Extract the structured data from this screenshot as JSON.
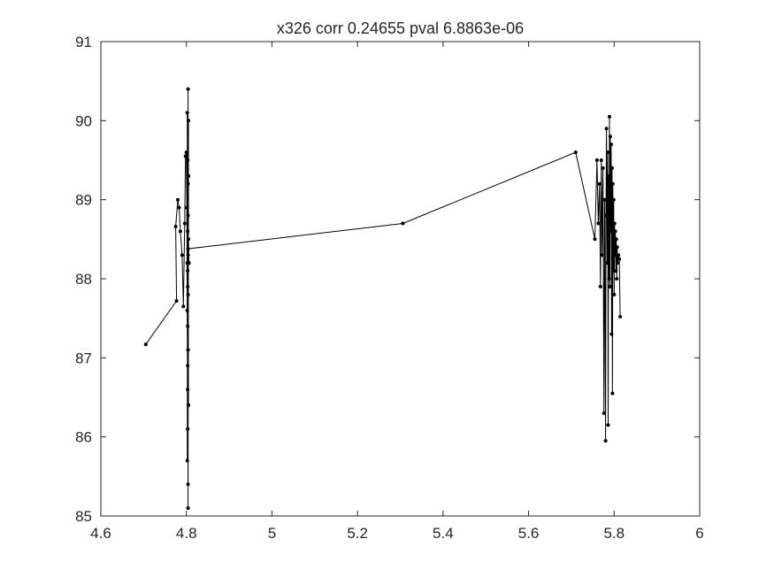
{
  "chart_data": {
    "type": "line",
    "title": "x326 corr 0.24655 pval 6.8863e-06",
    "xlabel": "",
    "ylabel": "",
    "xlim": [
      4.6,
      6
    ],
    "ylim": [
      85,
      91
    ],
    "xticks": [
      4.6,
      4.8,
      5,
      5.2,
      5.4,
      5.6,
      5.8,
      6
    ],
    "xtick_labels": [
      "4.6",
      "4.8",
      "5",
      "5.2",
      "5.4",
      "5.6",
      "5.8",
      "6"
    ],
    "yticks": [
      85,
      86,
      87,
      88,
      89,
      90,
      91
    ],
    "ytick_labels": [
      "85",
      "86",
      "87",
      "88",
      "89",
      "90",
      "91"
    ],
    "grid": false,
    "box": true,
    "line_color": "#000000",
    "marker": "dot",
    "series": [
      {
        "x": [
          4.705,
          4.777,
          4.775,
          4.78,
          4.783,
          4.786,
          4.79,
          4.793,
          4.796,
          4.798,
          4.8,
          4.802,
          4.801,
          4.803,
          4.804,
          4.802,
          4.803,
          4.804,
          4.802,
          4.803,
          4.804,
          4.805,
          4.803,
          4.804,
          4.802,
          4.803,
          4.804,
          4.805,
          4.803,
          4.804,
          4.803,
          4.804,
          4.805,
          4.803,
          4.804,
          4.805,
          4.806,
          4.804,
          5.306,
          5.71,
          5.755,
          5.76,
          5.763,
          5.766,
          5.768,
          5.77,
          5.772,
          5.774,
          5.776,
          5.778,
          5.78,
          5.781,
          5.782,
          5.784,
          5.785,
          5.786,
          5.787,
          5.788,
          5.789,
          5.79,
          5.791,
          5.792,
          5.793,
          5.794,
          5.795,
          5.796,
          5.797,
          5.798,
          5.799,
          5.8,
          5.801,
          5.802,
          5.803,
          5.804,
          5.805,
          5.806,
          5.807,
          5.808,
          5.81,
          5.812,
          5.814
        ],
        "y": [
          87.17,
          87.72,
          88.66,
          89.0,
          88.9,
          88.6,
          88.3,
          87.65,
          88.7,
          89.55,
          89.6,
          88.2,
          88.9,
          86.1,
          90.4,
          87.6,
          88.6,
          85.1,
          90.1,
          87.9,
          85.4,
          89.3,
          86.6,
          88.8,
          85.7,
          89.5,
          87.1,
          90.0,
          86.9,
          88.3,
          87.4,
          89.2,
          86.4,
          88.1,
          87.8,
          88.5,
          88.2,
          88.38,
          88.7,
          89.6,
          88.5,
          89.5,
          88.7,
          89.2,
          87.9,
          89.5,
          88.3,
          89.4,
          86.3,
          89.0,
          85.95,
          88.8,
          89.9,
          88.2,
          89.6,
          86.15,
          89.3,
          88.0,
          90.05,
          87.9,
          89.8,
          88.6,
          89.7,
          87.3,
          89.4,
          86.55,
          89.2,
          88.1,
          89.0,
          87.8,
          88.7,
          88.3,
          88.6,
          88.1,
          88.5,
          88.0,
          88.4,
          88.2,
          88.3,
          88.25,
          87.52
        ]
      }
    ]
  }
}
